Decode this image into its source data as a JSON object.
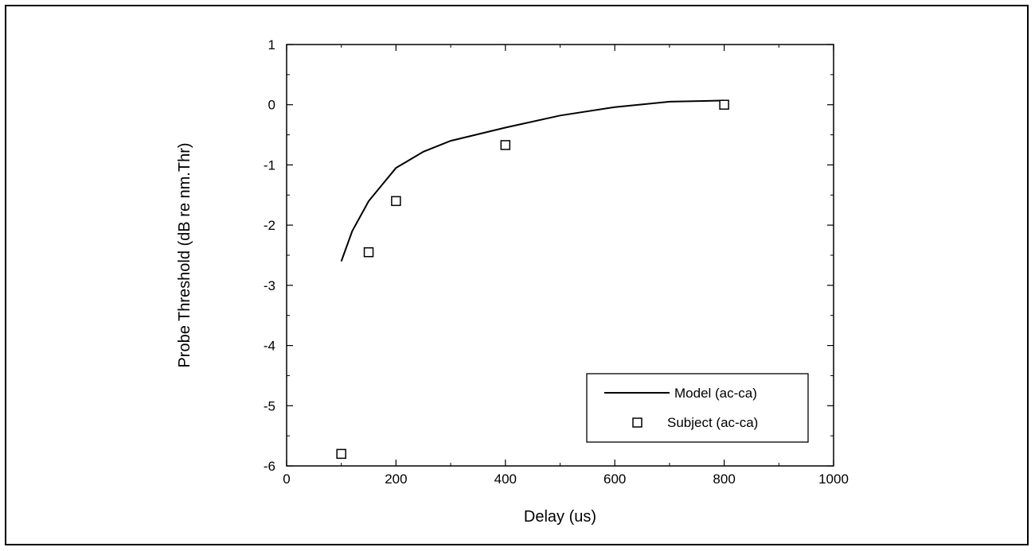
{
  "chart_data": {
    "type": "line",
    "title": "",
    "xlabel": "Delay (us)",
    "ylabel": "Probe Threshold (dB re nm.Thr)",
    "xlim": [
      0,
      1000
    ],
    "ylim": [
      -6,
      1
    ],
    "x_ticks": [
      0,
      200,
      400,
      600,
      800,
      1000
    ],
    "y_ticks": [
      1,
      0,
      -1,
      -2,
      -3,
      -4,
      -5,
      -6
    ],
    "grid": false,
    "legend_position": "bottom-right",
    "series": [
      {
        "name": "Model  (ac-ca)",
        "style": "line",
        "color": "#000000",
        "x": [
          100,
          120,
          150,
          200,
          250,
          300,
          400,
          500,
          600,
          700,
          800
        ],
        "y": [
          -2.6,
          -2.1,
          -1.6,
          -1.05,
          -0.78,
          -0.6,
          -0.38,
          -0.18,
          -0.04,
          0.05,
          0.07
        ]
      },
      {
        "name": "Subject (ac-ca)",
        "style": "open-square",
        "color": "#000000",
        "x": [
          100,
          150,
          200,
          400,
          800
        ],
        "y": [
          -5.8,
          -2.45,
          -1.6,
          -0.67,
          0.0
        ]
      }
    ]
  }
}
